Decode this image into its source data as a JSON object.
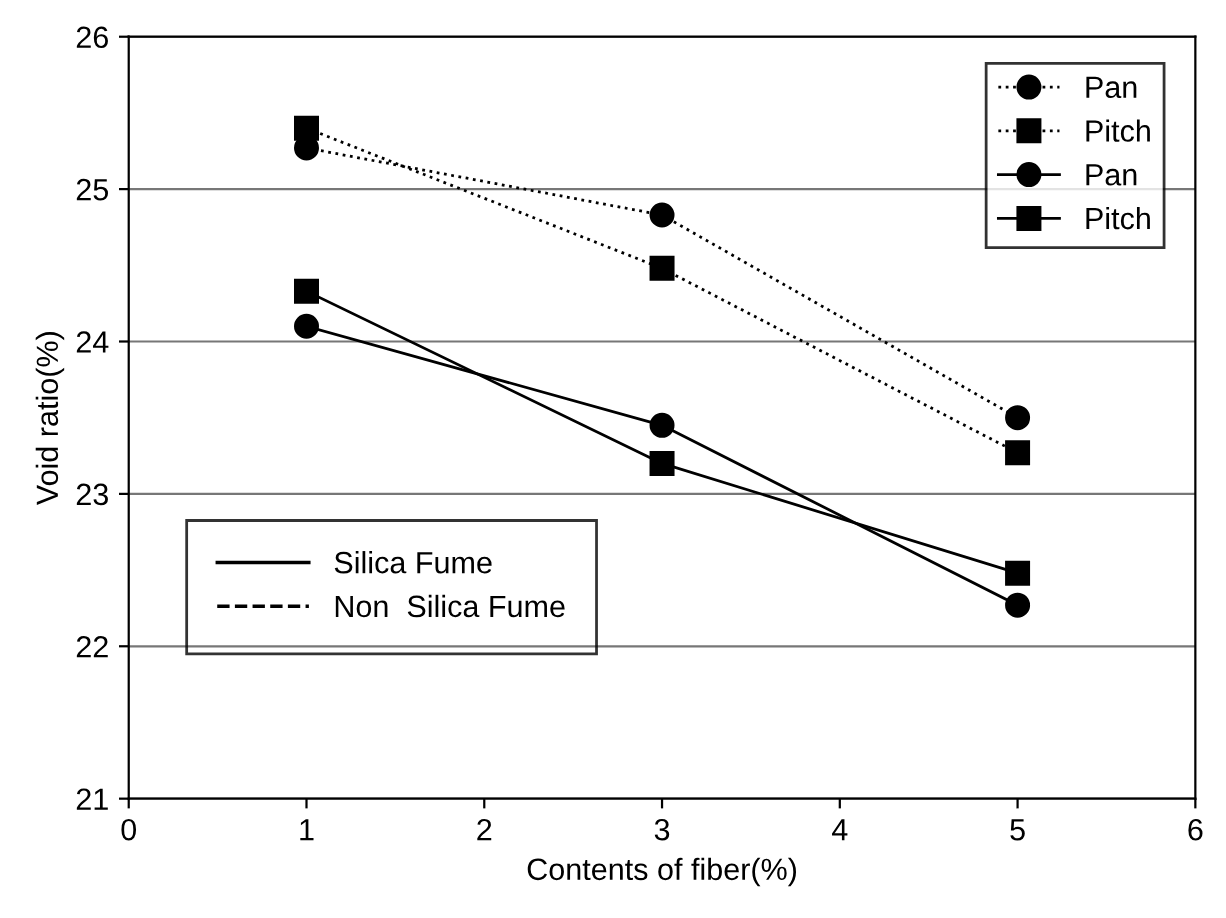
{
  "chart_data": {
    "type": "line",
    "xlabel": "Contents of fiber(%)",
    "ylabel": "Void ratio(%)",
    "x": [
      1,
      3,
      5
    ],
    "series": [
      {
        "name": "Pan",
        "color": "#000000",
        "values": [
          25.27,
          24.83,
          23.5
        ],
        "marker": "circle",
        "line_style": "dotted"
      },
      {
        "name": "Pitch",
        "color": "#000000",
        "values": [
          25.4,
          24.48,
          23.27
        ],
        "marker": "square",
        "line_style": "dotted"
      },
      {
        "name": "Pan",
        "color": "#000000",
        "values": [
          24.1,
          23.45,
          22.27
        ],
        "marker": "circle",
        "line_style": "solid"
      },
      {
        "name": "Pitch",
        "color": "#000000",
        "values": [
          24.33,
          23.2,
          22.48
        ],
        "marker": "square",
        "line_style": "solid"
      }
    ],
    "xlim": [
      0,
      6
    ],
    "xticks": [
      0,
      1,
      2,
      3,
      4,
      5,
      6
    ],
    "ylim": [
      21,
      26
    ],
    "yticks": [
      21,
      22,
      23,
      24,
      25,
      26
    ],
    "grid": "y",
    "legend": "top right",
    "annotations": [
      "Silica Fume",
      "Non  Silica Fume"
    ]
  }
}
